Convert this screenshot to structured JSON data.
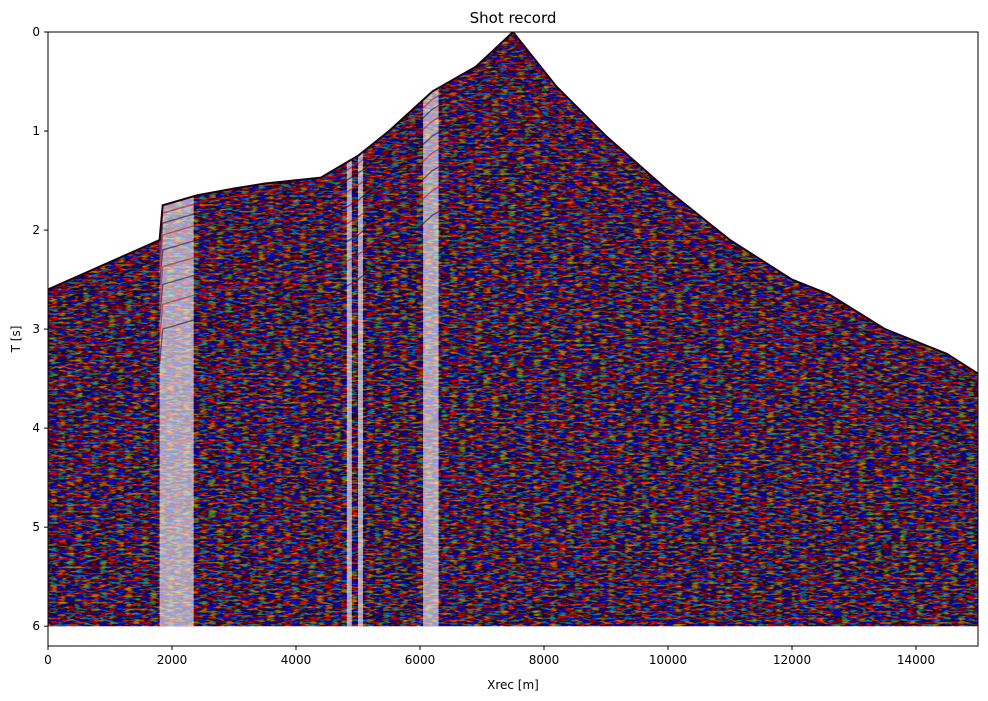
{
  "chart_data": {
    "type": "heatmap",
    "title": "Shot record",
    "xlabel": "Xrec [m]",
    "ylabel": "T [s]",
    "xlim": [
      0,
      15000
    ],
    "ylim": [
      6.2,
      0
    ],
    "x_ticks": [
      0,
      2000,
      4000,
      6000,
      8000,
      10000,
      12000,
      14000
    ],
    "y_ticks": [
      0,
      1,
      2,
      3,
      4,
      5,
      6
    ],
    "x_tick_labels": [
      "0",
      "2000",
      "4000",
      "6000",
      "8000",
      "10000",
      "12000",
      "14000"
    ],
    "y_tick_labels": [
      "0",
      "1",
      "2",
      "3",
      "4",
      "5",
      "6"
    ],
    "colormap": "seismic",
    "colors": {
      "positive": "#ff0000",
      "negative": "#0000ff",
      "zero": "#ffffff",
      "background": "#ffffff"
    },
    "record_end_time": 6.0,
    "source_position": 7500,
    "first_break_curve": {
      "x": [
        0,
        1800,
        1850,
        2400,
        3000,
        3500,
        4400,
        5000,
        5500,
        6200,
        6900,
        7500,
        8200,
        9000,
        10000,
        11000,
        12000,
        12600,
        13500,
        14500,
        15000
      ],
      "t": [
        2.6,
        2.1,
        1.75,
        1.65,
        1.58,
        1.53,
        1.47,
        1.25,
        1.0,
        0.6,
        0.35,
        0.0,
        0.55,
        1.05,
        1.6,
        2.1,
        2.5,
        2.65,
        3.0,
        3.25,
        3.45
      ]
    },
    "low_amplitude_traces": [
      {
        "x0": 1800,
        "x1": 2350
      },
      {
        "x0": 4820,
        "x1": 4900
      },
      {
        "x0": 5000,
        "x1": 5080
      },
      {
        "x0": 6050,
        "x1": 6300
      }
    ]
  }
}
